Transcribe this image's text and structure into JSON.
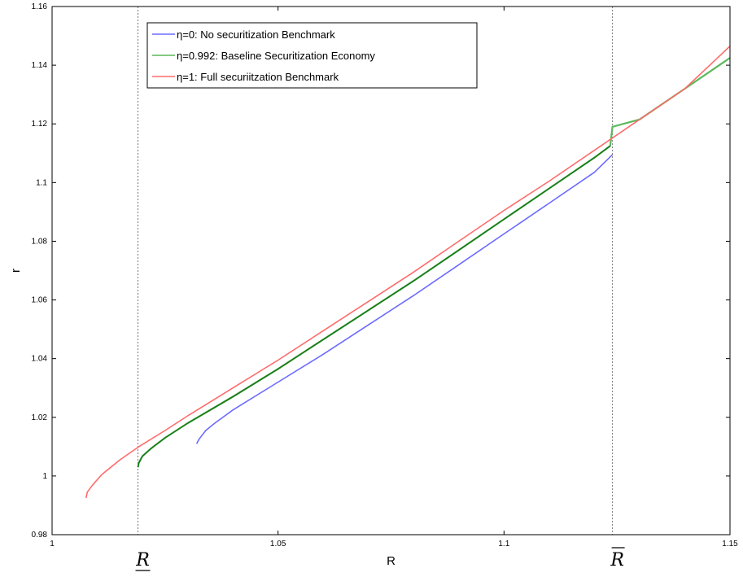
{
  "chart_data": {
    "type": "line",
    "xlabel": "R",
    "ylabel": "r",
    "xlim": [
      1.0,
      1.15
    ],
    "ylim": [
      0.98,
      1.16
    ],
    "x_ticks": [
      "1",
      "1.05",
      "1.1",
      "1.15"
    ],
    "y_ticks": [
      "0.98",
      "1",
      "1.02",
      "1.04",
      "1.06",
      "1.08",
      "1.1",
      "1.12",
      "1.14",
      "1.16"
    ],
    "legend_position": "top-left",
    "grid": false,
    "reference_lines": [
      {
        "x": 1.019,
        "label": "R",
        "mark": "underline"
      },
      {
        "x": 1.124,
        "label": "R",
        "mark": "overline"
      }
    ],
    "series": [
      {
        "name": "η=0: No securitization Benchmark",
        "color": "#6b6bff",
        "x": [
          1.032,
          1.0325,
          1.034,
          1.036,
          1.04,
          1.05,
          1.06,
          1.07,
          1.08,
          1.09,
          1.1,
          1.11,
          1.12,
          1.124
        ],
        "y": [
          1.011,
          1.0125,
          1.0155,
          1.018,
          1.0225,
          1.032,
          1.0415,
          1.0515,
          1.0615,
          1.072,
          1.0825,
          1.093,
          1.1035,
          1.1095
        ]
      },
      {
        "name": "η=0.992: Baseline Securitization Economy",
        "color": "#5cb85c",
        "x": [
          1.019,
          1.0192,
          1.02,
          1.022,
          1.025,
          1.03,
          1.04,
          1.05,
          1.06,
          1.07,
          1.08,
          1.09,
          1.1,
          1.11,
          1.12,
          1.1235,
          1.124,
          1.13,
          1.14,
          1.15
        ],
        "y": [
          1.003,
          1.0045,
          1.0068,
          1.0095,
          1.013,
          1.018,
          1.027,
          1.0365,
          1.0465,
          1.0565,
          1.0665,
          1.077,
          1.0875,
          1.098,
          1.1085,
          1.1125,
          1.119,
          1.1215,
          1.132,
          1.1425
        ]
      },
      {
        "name": "η=1: Full securiitzation Benchmark",
        "color": "#ff6b6b",
        "x": [
          1.0075,
          1.0078,
          1.009,
          1.011,
          1.015,
          1.019,
          1.025,
          1.03,
          1.04,
          1.05,
          1.06,
          1.07,
          1.08,
          1.09,
          1.1,
          1.11,
          1.12,
          1.13,
          1.14,
          1.15
        ],
        "y": [
          0.9925,
          0.9945,
          0.997,
          1.0005,
          1.0055,
          1.0098,
          1.0155,
          1.0205,
          1.03,
          1.0395,
          1.0495,
          1.0595,
          1.0695,
          1.08,
          1.0905,
          1.1005,
          1.111,
          1.1215,
          1.132,
          1.1465
        ]
      }
    ]
  }
}
